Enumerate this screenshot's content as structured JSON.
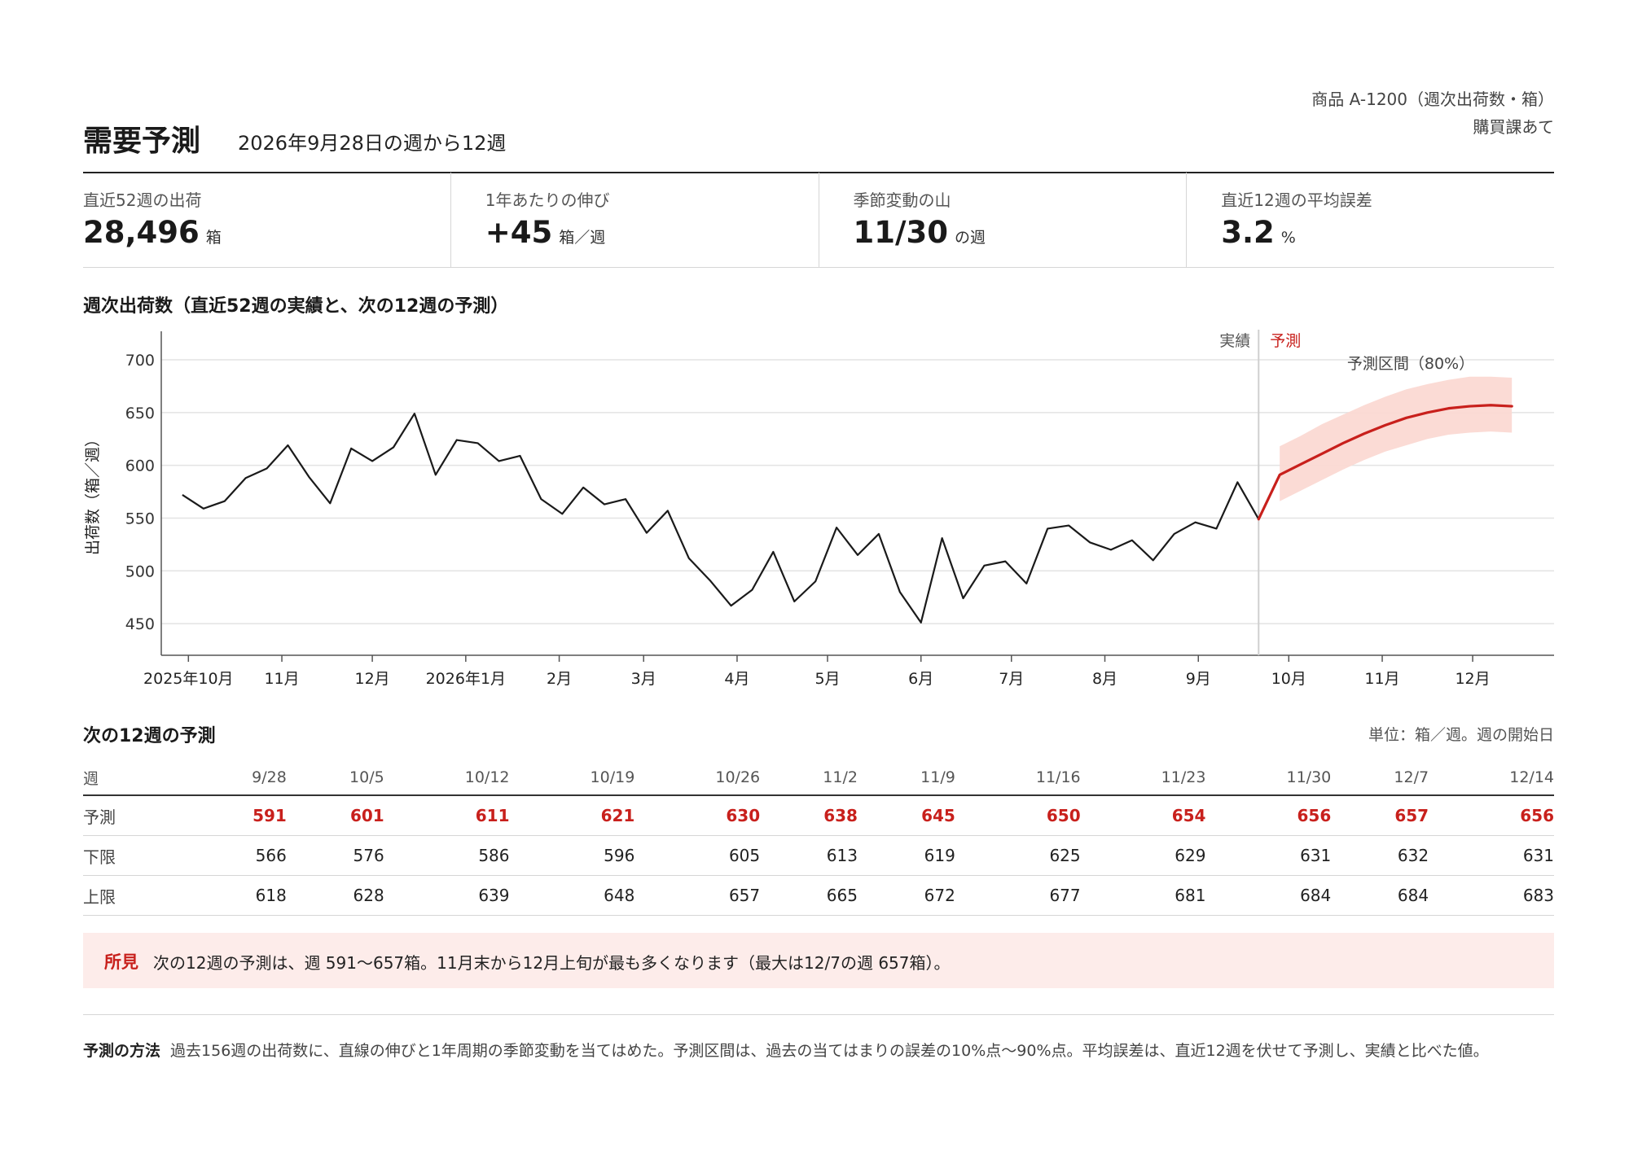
{
  "header": {
    "title": "需要予測",
    "subtitle": "2026年9月28日の週から12週",
    "product": "商品 A-1200（週次出荷数・箱）",
    "department": "購買課あて"
  },
  "kpis": [
    {
      "label": "直近52週の出荷",
      "value": "28,496",
      "unit": "箱"
    },
    {
      "label": "1年あたりの伸び",
      "value": "+45",
      "unit": "箱／週"
    },
    {
      "label": "季節変動の山",
      "value": "11/30",
      "unit": "の週"
    },
    {
      "label": "直近12週の平均誤差",
      "value": "3.2",
      "unit": "%"
    }
  ],
  "chart_title": "週次出荷数（直近52週の実績と、次の12週の予測）",
  "chart_data": {
    "type": "line",
    "ylabel": "出荷数（箱／週）",
    "ylim": [
      420,
      727
    ],
    "yticks": [
      450,
      500,
      550,
      600,
      650,
      700
    ],
    "xlim": [
      "2025-09-22",
      "2026-12-28"
    ],
    "xticks": [
      {
        "date": "2025-10-01",
        "label": "2025年10月"
      },
      {
        "date": "2025-11-01",
        "label": "11月"
      },
      {
        "date": "2025-12-01",
        "label": "12月"
      },
      {
        "date": "2026-01-01",
        "label": "2026年1月"
      },
      {
        "date": "2026-02-01",
        "label": "2月"
      },
      {
        "date": "2026-03-01",
        "label": "3月"
      },
      {
        "date": "2026-04-01",
        "label": "4月"
      },
      {
        "date": "2026-05-01",
        "label": "5月"
      },
      {
        "date": "2026-06-01",
        "label": "6月"
      },
      {
        "date": "2026-07-01",
        "label": "7月"
      },
      {
        "date": "2026-08-01",
        "label": "8月"
      },
      {
        "date": "2026-09-01",
        "label": "9月"
      },
      {
        "date": "2026-10-01",
        "label": "10月"
      },
      {
        "date": "2026-11-01",
        "label": "11月"
      },
      {
        "date": "2026-12-01",
        "label": "12月"
      }
    ],
    "grid": true,
    "boundary_date": "2026-09-21",
    "boundary_labels": {
      "actual": "実績",
      "forecast": "予測"
    },
    "interval_label": "予測区間（80%）",
    "colors": {
      "actual": "#1a1a1a",
      "forecast": "#c8201c",
      "band": "#fbd9d3",
      "grid": "#e3e3e3",
      "boundary": "#cfcfcf"
    },
    "actual": {
      "start": "2025-09-29",
      "values": [
        572,
        559,
        566,
        588,
        597,
        619,
        589,
        564,
        616,
        604,
        617,
        649,
        591,
        624,
        621,
        604,
        609,
        568,
        554,
        579,
        563,
        568,
        536,
        557,
        512,
        491,
        467,
        482,
        518,
        471,
        490,
        541,
        515,
        535,
        480,
        451,
        531,
        474,
        505,
        509,
        488,
        540,
        543,
        527,
        520,
        529,
        510,
        535,
        546,
        540,
        584,
        549
      ]
    },
    "forecast": {
      "start": "2026-09-28",
      "values": [
        591,
        601,
        611,
        621,
        630,
        638,
        645,
        650,
        654,
        656,
        657,
        656
      ],
      "lower": [
        566,
        576,
        586,
        596,
        605,
        613,
        619,
        625,
        629,
        631,
        632,
        631
      ],
      "upper": [
        618,
        628,
        639,
        648,
        657,
        665,
        672,
        677,
        681,
        684,
        684,
        683
      ]
    }
  },
  "table": {
    "title": "次の12週の予測",
    "unit_note": "単位：箱／週。週の開始日",
    "header_label": "週",
    "weeks": [
      "9/28",
      "10/5",
      "10/12",
      "10/19",
      "10/26",
      "11/2",
      "11/9",
      "11/16",
      "11/23",
      "11/30",
      "12/7",
      "12/14"
    ],
    "rows": [
      {
        "label": "予測",
        "values": [
          "591",
          "601",
          "611",
          "621",
          "630",
          "638",
          "645",
          "650",
          "654",
          "656",
          "657",
          "656"
        ]
      },
      {
        "label": "下限",
        "values": [
          "566",
          "576",
          "586",
          "596",
          "605",
          "613",
          "619",
          "625",
          "629",
          "631",
          "632",
          "631"
        ]
      },
      {
        "label": "上限",
        "values": [
          "618",
          "628",
          "639",
          "648",
          "657",
          "665",
          "672",
          "677",
          "681",
          "684",
          "684",
          "683"
        ]
      }
    ]
  },
  "insight": {
    "label": "所見",
    "text": "次の12週の予測は、週 591〜657箱。11月末から12月上旬が最も多くなります（最大は12/7の週 657箱）。"
  },
  "method": {
    "label": "予測の方法",
    "text": "過去156週の出荷数に、直線の伸びと1年周期の季節変動を当てはめた。予測区間は、過去の当てはまりの誤差の10%点〜90%点。平均誤差は、直近12週を伏せて予測し、実績と比べた値。"
  }
}
